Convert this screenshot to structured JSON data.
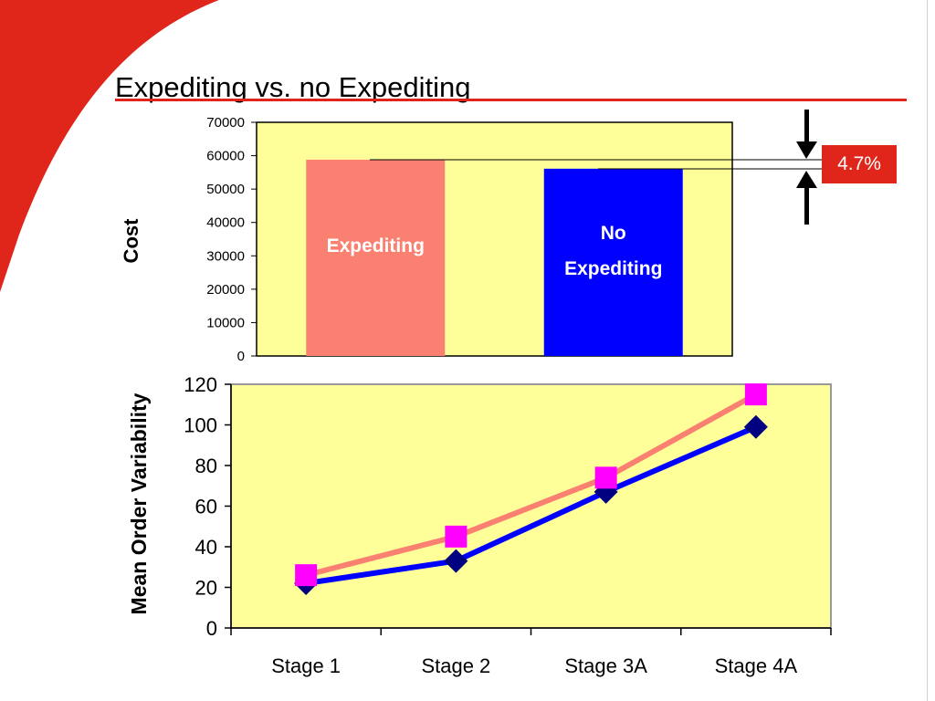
{
  "slide": {
    "title": "Expediting vs. no Expediting",
    "accent_color": "#e0261b"
  },
  "difference_badge": {
    "label": "4.7%",
    "icons": [
      "arrow-down-icon",
      "arrow-up-icon"
    ]
  },
  "chart_data": [
    {
      "type": "bar",
      "ylabel": "Cost",
      "xlabel": "",
      "ylim": [
        0,
        70000
      ],
      "yticks": [
        0,
        10000,
        20000,
        30000,
        40000,
        50000,
        60000,
        70000
      ],
      "background": "#ffff99",
      "categories": [
        "Expediting",
        "No Expediting"
      ],
      "bar_labels": [
        [
          "Expediting"
        ],
        [
          "No",
          "Expediting"
        ]
      ],
      "values": [
        58800,
        56100
      ],
      "colors": [
        "#fa8072",
        "#0000ff"
      ]
    },
    {
      "type": "line",
      "ylabel": "Mean Order Variability",
      "xlabel": "",
      "ylim": [
        0,
        120
      ],
      "yticks": [
        0,
        20,
        40,
        60,
        80,
        100,
        120
      ],
      "background": "#ffff99",
      "categories": [
        "Stage 1",
        "Stage 2",
        "Stage 3A",
        "Stage 4A"
      ],
      "series": [
        {
          "values": [
            26,
            45,
            74,
            115
          ],
          "color": "#fa8072",
          "marker": "square",
          "marker_color": "#ff00ff"
        },
        {
          "values": [
            22,
            33,
            67,
            99
          ],
          "color": "#0000ff",
          "marker": "diamond",
          "marker_color": "#000080"
        }
      ],
      "grid": false,
      "legend": "none"
    }
  ]
}
